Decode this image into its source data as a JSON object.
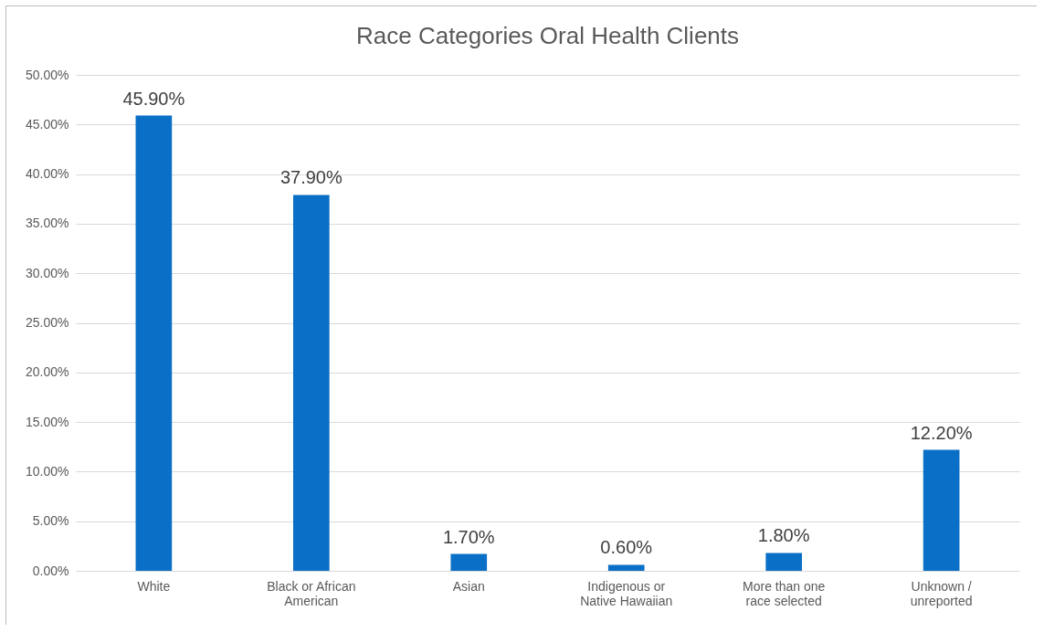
{
  "chart_data": {
    "type": "bar",
    "title": "Race Categories Oral Health Clients",
    "categories": [
      "White",
      "Black or African American",
      "Asian",
      "Indigenous or Native Hawaiian",
      "More than one race selected",
      "Unknown / unreported"
    ],
    "values": [
      45.9,
      37.9,
      1.7,
      0.6,
      1.8,
      12.2
    ],
    "value_labels": [
      "45.90%",
      "37.90%",
      "1.70%",
      "0.60%",
      "1.80%",
      "12.20%"
    ],
    "color": "#0a6fc6",
    "ylim": [
      0,
      50
    ],
    "yticks": [
      {
        "value": 0,
        "label": "0.00%"
      },
      {
        "value": 5,
        "label": "5.00%"
      },
      {
        "value": 10,
        "label": "10.00%"
      },
      {
        "value": 15,
        "label": "15.00%"
      },
      {
        "value": 20,
        "label": "20.00%"
      },
      {
        "value": 25,
        "label": "25.00%"
      },
      {
        "value": 30,
        "label": "30.00%"
      },
      {
        "value": 35,
        "label": "35.00%"
      },
      {
        "value": 40,
        "label": "40.00%"
      },
      {
        "value": 45,
        "label": "45.00%"
      },
      {
        "value": 50,
        "label": "50.00%"
      }
    ],
    "grid": "y"
  }
}
